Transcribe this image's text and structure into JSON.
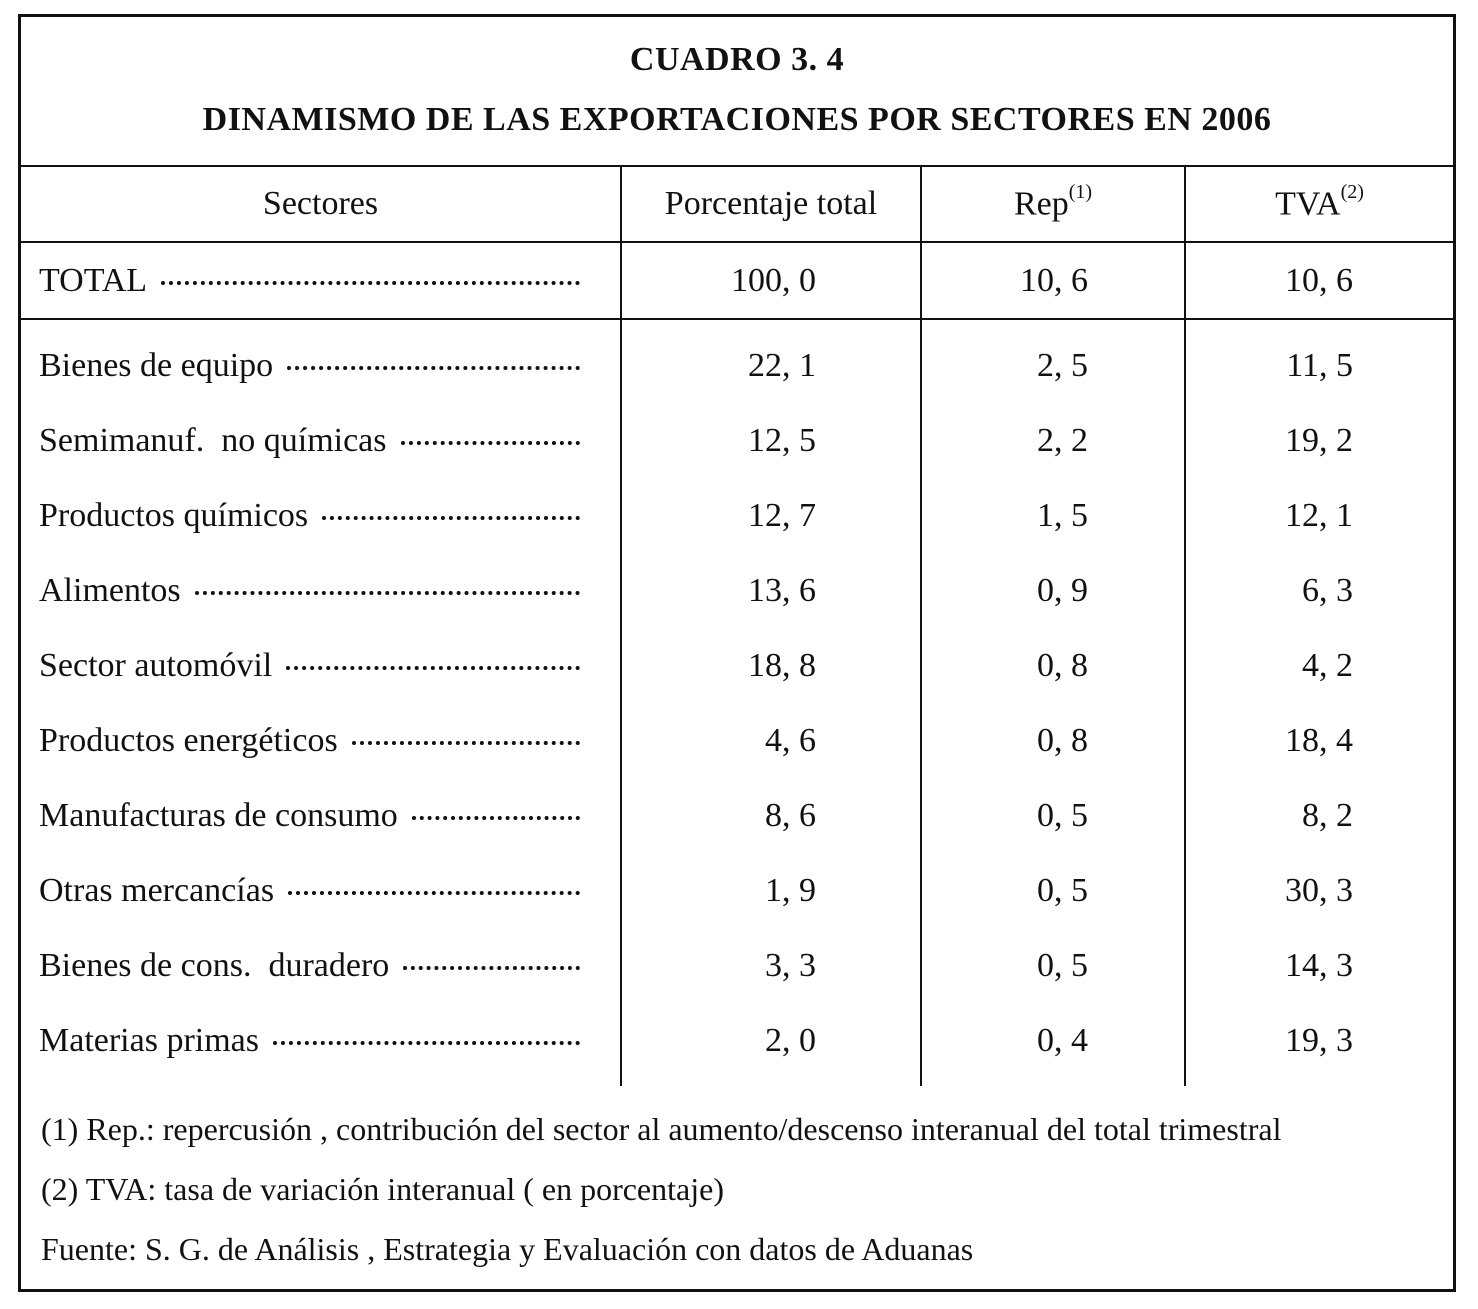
{
  "title": {
    "line1": "CUADRO 3. 4",
    "line2": "DINAMISMO DE LAS EXPORTACIONES POR SECTORES EN 2006"
  },
  "header": {
    "sectores": "Sectores",
    "porcentaje": "Porcentaje total",
    "rep": "Rep",
    "rep_note": "(1)",
    "tva": "TVA",
    "tva_note": "(2)"
  },
  "total": {
    "label": "TOTAL",
    "porcentaje": "100, 0",
    "rep": "10, 6",
    "tva": "10, 6"
  },
  "rows": [
    {
      "sector": "Bienes de equipo",
      "porcentaje": "22, 1",
      "rep": "2, 5",
      "tva": "11, 5"
    },
    {
      "sector": "Semimanuf.  no químicas",
      "porcentaje": "12, 5",
      "rep": "2, 2",
      "tva": "19, 2"
    },
    {
      "sector": "Productos químicos",
      "porcentaje": "12, 7",
      "rep": "1, 5",
      "tva": "12, 1"
    },
    {
      "sector": "Alimentos",
      "porcentaje": "13, 6",
      "rep": "0, 9",
      "tva": "6, 3"
    },
    {
      "sector": "Sector automóvil",
      "porcentaje": "18, 8",
      "rep": "0, 8",
      "tva": "4, 2"
    },
    {
      "sector": "Productos energéticos",
      "porcentaje": "4, 6",
      "rep": "0, 8",
      "tva": "18, 4"
    },
    {
      "sector": "Manufacturas de consumo",
      "porcentaje": "8, 6",
      "rep": "0, 5",
      "tva": "8, 2"
    },
    {
      "sector": "Otras mercancías",
      "porcentaje": "1, 9",
      "rep": "0, 5",
      "tva": "30, 3"
    },
    {
      "sector": "Bienes de cons.  duradero",
      "porcentaje": "3, 3",
      "rep": "0, 5",
      "tva": "14, 3"
    },
    {
      "sector": "Materias primas",
      "porcentaje": "2, 0",
      "rep": "0, 4",
      "tva": "19, 3"
    }
  ],
  "notes": {
    "note1": "(1)   Rep.:  repercusión , contribución del sector al aumento/descenso interanual del total trimestral",
    "note2": "(2)   TVA:  tasa de variación interanual ( en porcentaje)",
    "source": "Fuente:  S. G. de Análisis , Estrategia y Evaluación con datos de Aduanas"
  }
}
